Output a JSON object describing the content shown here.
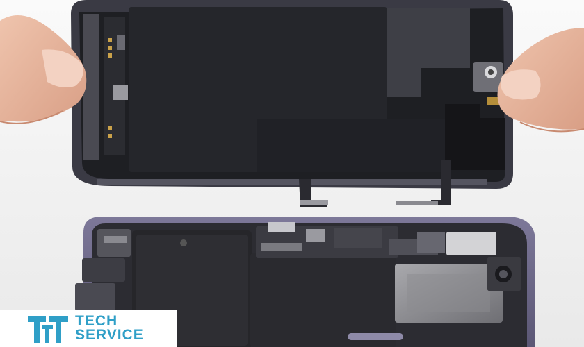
{
  "logo": {
    "line1": "TECH",
    "line2": "SERVICE",
    "color": "#2f9fc7"
  },
  "colors": {
    "background": "#f4f4f4",
    "frame": "#3a3a44",
    "panel": "#1e1f23",
    "phone_body": "#6e6a8a",
    "battery": "#2a2a2e",
    "skin": "#e8b9a0"
  }
}
